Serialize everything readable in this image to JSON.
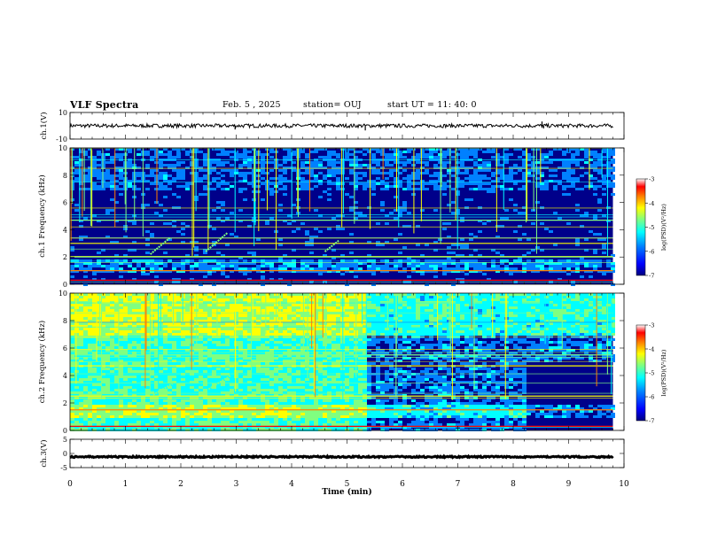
{
  "header": {
    "title": "VLF Spectra",
    "date": "Feb. 5 , 2025",
    "station": "station= OUJ",
    "start": "start UT = 11: 40: 0"
  },
  "colors": {
    "spec_bg": "#00008a",
    "colormap": [
      "#00007f",
      "#0000ff",
      "#0080ff",
      "#00ffff",
      "#80ff80",
      "#ffff00",
      "#ff8000",
      "#ff0000",
      "#ffffff"
    ],
    "waveform": "#000000"
  },
  "chart_data": [
    {
      "type": "line",
      "name": "waveform-ch1",
      "ylabel": "ch.1(V)",
      "ylim": [
        -10,
        10
      ],
      "yticks": [
        "10",
        "-10"
      ],
      "xlim": [
        0,
        10
      ],
      "level": 0,
      "noise_amp": 1.4,
      "spikes": [
        {
          "x": 2.98,
          "y": -2.8
        },
        {
          "x": 5.33,
          "y": -3.5
        },
        {
          "x": 8.52,
          "y": 3.2
        },
        {
          "x": 8.55,
          "y": -2.0
        }
      ]
    },
    {
      "type": "heatmap",
      "name": "spectrogram-ch1",
      "ylabel": "ch.1 Frequency (kHz)",
      "ylim": [
        0,
        10
      ],
      "yticks": [
        "0",
        "2",
        "4",
        "6",
        "8",
        "10"
      ],
      "xlim": [
        0,
        9.8
      ],
      "colorbar": {
        "label": "log(PSD)(V²/Hz)",
        "ticks": [
          "-3",
          "-4",
          "-5",
          "-6",
          "-7"
        ],
        "range": [
          -7,
          -3
        ]
      },
      "bands": [
        {
          "f": 0.3,
          "level": 0.9
        },
        {
          "f": 1.0,
          "level": 0.75
        },
        {
          "f": 2.0,
          "level": 0.6
        },
        {
          "f": 3.0,
          "level": 0.7
        },
        {
          "f": 3.4,
          "level": 0.65
        },
        {
          "f": 4.7,
          "level": 0.5
        }
      ],
      "whistlers": [
        {
          "x0": 1.45,
          "x1": 1.8,
          "f0": 2.2,
          "f1": 3.4
        },
        {
          "x0": 2.45,
          "x1": 2.85,
          "f0": 2.4,
          "f1": 3.8
        },
        {
          "x0": 4.6,
          "x1": 4.85,
          "f0": 2.4,
          "f1": 3.2
        }
      ]
    },
    {
      "type": "heatmap",
      "name": "spectrogram-ch2",
      "ylabel": "ch.2 Frequency (kHz)",
      "ylim": [
        0,
        10
      ],
      "yticks": [
        "0",
        "2",
        "4",
        "6",
        "8",
        "10"
      ],
      "xlim": [
        0,
        9.8
      ],
      "colorbar": {
        "label": "log(PSD)(V²/Hz)",
        "ticks": [
          "-3",
          "-4",
          "-5",
          "-6",
          "-7"
        ],
        "range": [
          -7,
          -3
        ]
      },
      "bands": [
        {
          "f": 0.3,
          "level": 0.9
        },
        {
          "f": 1.5,
          "level": 0.75
        },
        {
          "f": 2.5,
          "level": 0.65
        },
        {
          "f": 4.7,
          "level": 0.7
        },
        {
          "f": 5.5,
          "level": 0.6
        }
      ],
      "whistlers": [
        {
          "x0": 1.5,
          "x1": 1.85,
          "f0": 2.6,
          "f1": 3.4
        },
        {
          "x0": 2.5,
          "x1": 2.9,
          "f0": 3.0,
          "f1": 4.0
        }
      ]
    },
    {
      "type": "line",
      "name": "waveform-ch3",
      "ylabel": "ch.3(V)",
      "ylim": [
        -5,
        5
      ],
      "yticks": [
        "5",
        "0",
        "-5"
      ],
      "xlim": [
        0,
        10
      ],
      "level": -1.2,
      "noise_amp": 0.25,
      "spikes": []
    }
  ],
  "xaxis": {
    "label": "Time (min)",
    "ticks": [
      "0",
      "1",
      "2",
      "3",
      "4",
      "5",
      "6",
      "7",
      "8",
      "9",
      "10"
    ],
    "range": [
      0,
      10
    ]
  }
}
